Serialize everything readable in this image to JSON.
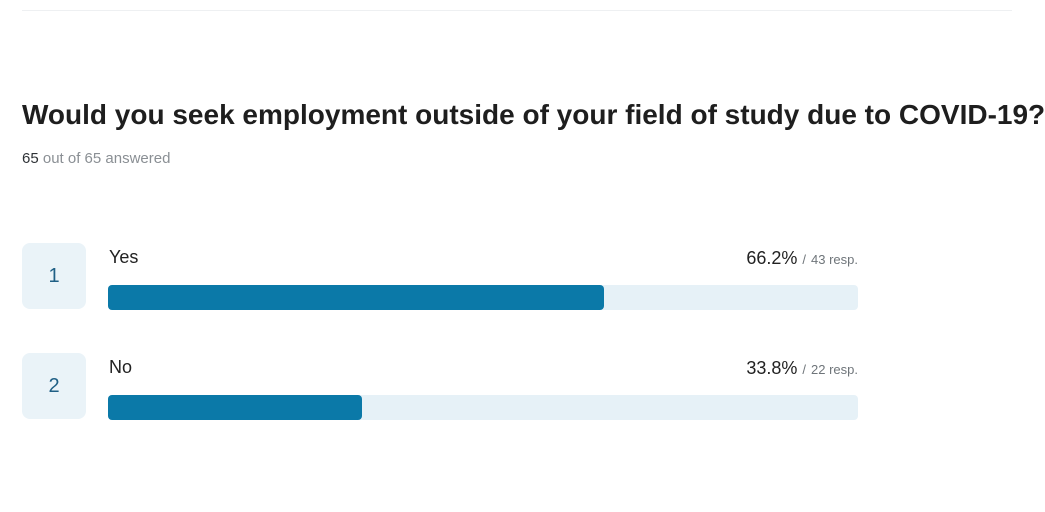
{
  "question": {
    "title": "Would you seek employment outside of your field of study due to COVID-19?",
    "answered_count": "65",
    "answered_rest": "out of 65 answered"
  },
  "chart_data": {
    "type": "bar",
    "orientation": "horizontal",
    "categories": [
      "Yes",
      "No"
    ],
    "values": [
      66.2,
      33.8
    ],
    "responses": [
      43,
      22
    ],
    "unit": "%",
    "xlim": [
      0,
      100
    ],
    "title": "Would you seek employment outside of your field of study due to COVID-19?",
    "colors": {
      "fill": "#0b79a8",
      "track": "#e6f1f7",
      "index_bg": "#eaf3f8"
    }
  },
  "choices": [
    {
      "index": "1",
      "label": "Yes",
      "percent_label": "66.2%",
      "resp_label": "43 resp."
    },
    {
      "index": "2",
      "label": "No",
      "percent_label": "33.8%",
      "resp_label": "22 resp."
    }
  ]
}
